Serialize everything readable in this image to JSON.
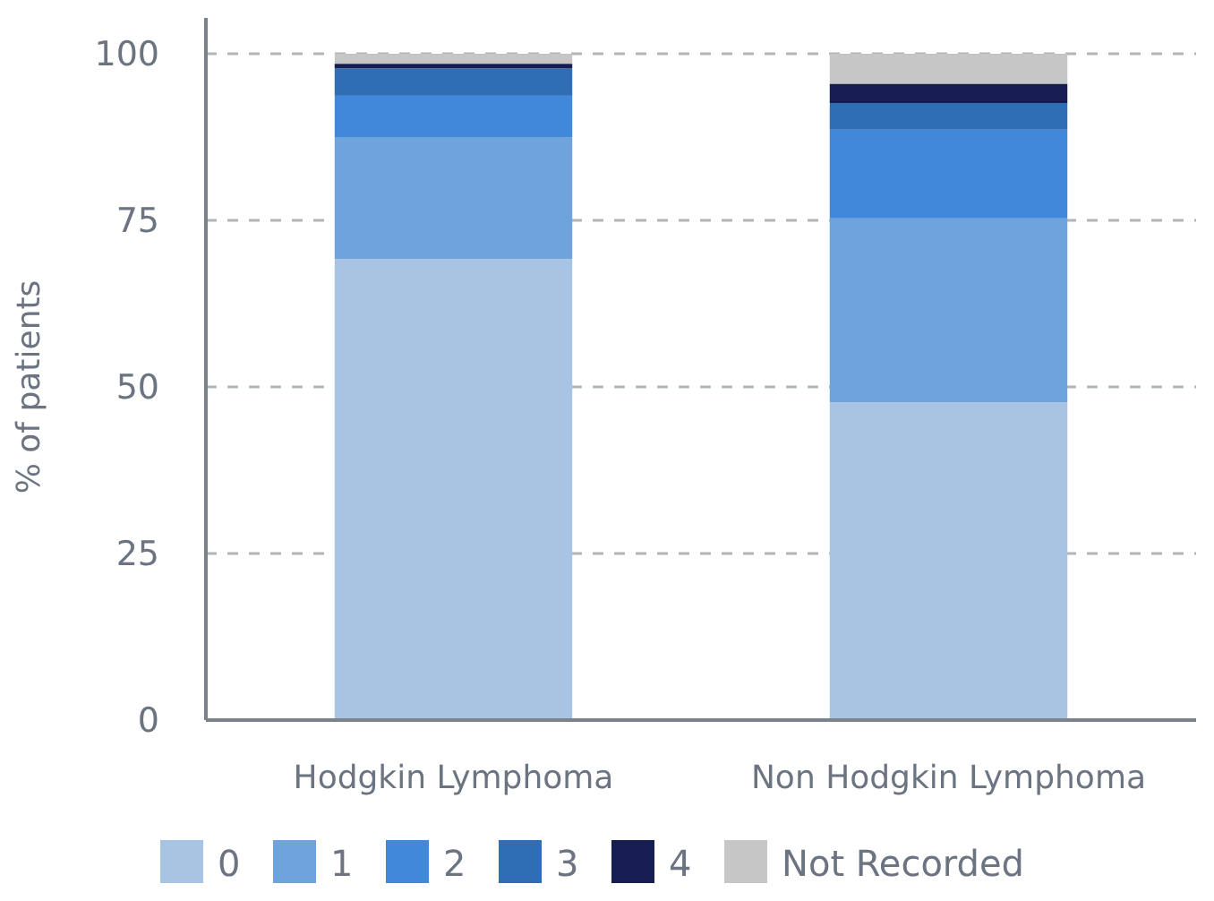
{
  "chart_data": {
    "type": "bar",
    "stacked": true,
    "ylabel": "% of patients",
    "categories": [
      "Hodgkin Lymphoma",
      "Non Hodgkin Lymphoma"
    ],
    "series": [
      {
        "name": "0",
        "color": "#a9c4e2",
        "values": [
          69.2,
          47.7
        ]
      },
      {
        "name": "1",
        "color": "#6fa3dc",
        "values": [
          18.3,
          27.6
        ]
      },
      {
        "name": "2",
        "color": "#3f88da",
        "values": [
          6.2,
          13.3
        ]
      },
      {
        "name": "3",
        "color": "#2f6db5",
        "values": [
          4.1,
          4.0
        ]
      },
      {
        "name": "4",
        "color": "#161d50",
        "values": [
          0.7,
          2.9
        ]
      },
      {
        "name": "Not Recorded",
        "color": "#c6c6c6",
        "values": [
          1.5,
          4.5
        ]
      }
    ],
    "ylim": [
      0,
      100
    ],
    "yticks": [
      0,
      25,
      50,
      75,
      100
    ],
    "grid": "y",
    "legend": "bottom"
  }
}
